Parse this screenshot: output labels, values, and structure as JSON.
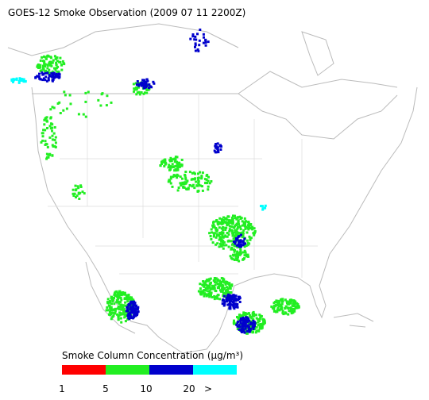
{
  "title": "GOES-12 Smoke Observation (2009 07 11  2200Z)",
  "legend": {
    "title": "Smoke Column Concentration (μg/m³)",
    "colors": [
      "#ff0000",
      "#22ee22",
      "#0000cc",
      "#00ffff"
    ],
    "labels": [
      "1",
      "5",
      "10",
      "20",
      ">"
    ]
  }
}
